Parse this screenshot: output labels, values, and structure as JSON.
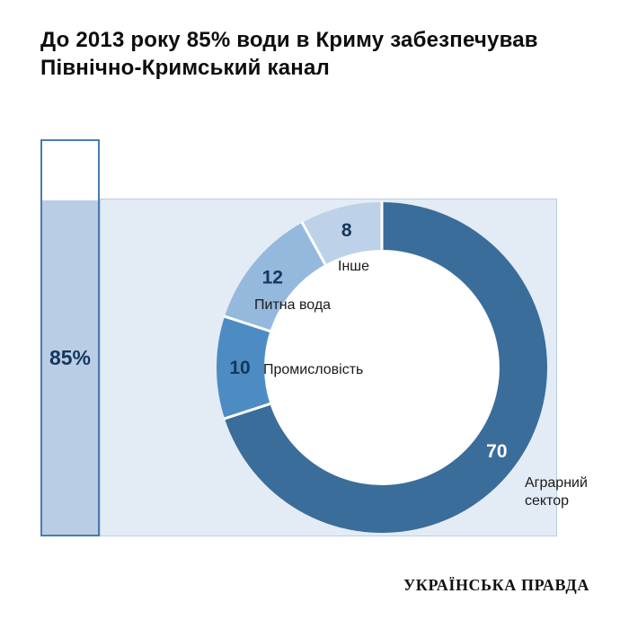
{
  "title": "До 2013 року 85% води в Криму забезпечував\nПівнічно-Кримський канал",
  "bar": {
    "label": "85%",
    "fill_percent": 85,
    "fill_color": "#b9cde5",
    "border_color": "#4a7cb0",
    "label_color": "#16365c"
  },
  "chart_data": {
    "type": "pie",
    "variant": "donut",
    "title": "До 2013 року 85% води в Криму забезпечував Північно-Кримський канал",
    "total": 100,
    "start_angle_deg": 0,
    "direction": "clockwise",
    "inner_radius_ratio": 0.71,
    "legend_position": "around-segments",
    "segments": [
      {
        "label": "Аграрний сектор",
        "value": 70,
        "color": "#3a6d99",
        "value_color": "#ffffff"
      },
      {
        "label": "Промисловість",
        "value": 10,
        "color": "#4d8cc3",
        "value_color": "#16365c"
      },
      {
        "label": "Питна вода",
        "value": 12,
        "color": "#94b9dd",
        "value_color": "#16365c"
      },
      {
        "label": "Інше",
        "value": 8,
        "color": "#bdd1e8",
        "value_color": "#16365c"
      }
    ]
  },
  "logo": "УКРАЇНСЬКА ПРАВДА",
  "colors": {
    "band_fill": "#e3ebf5",
    "band_border": "#b9cde5",
    "separator": "#ffffff"
  }
}
